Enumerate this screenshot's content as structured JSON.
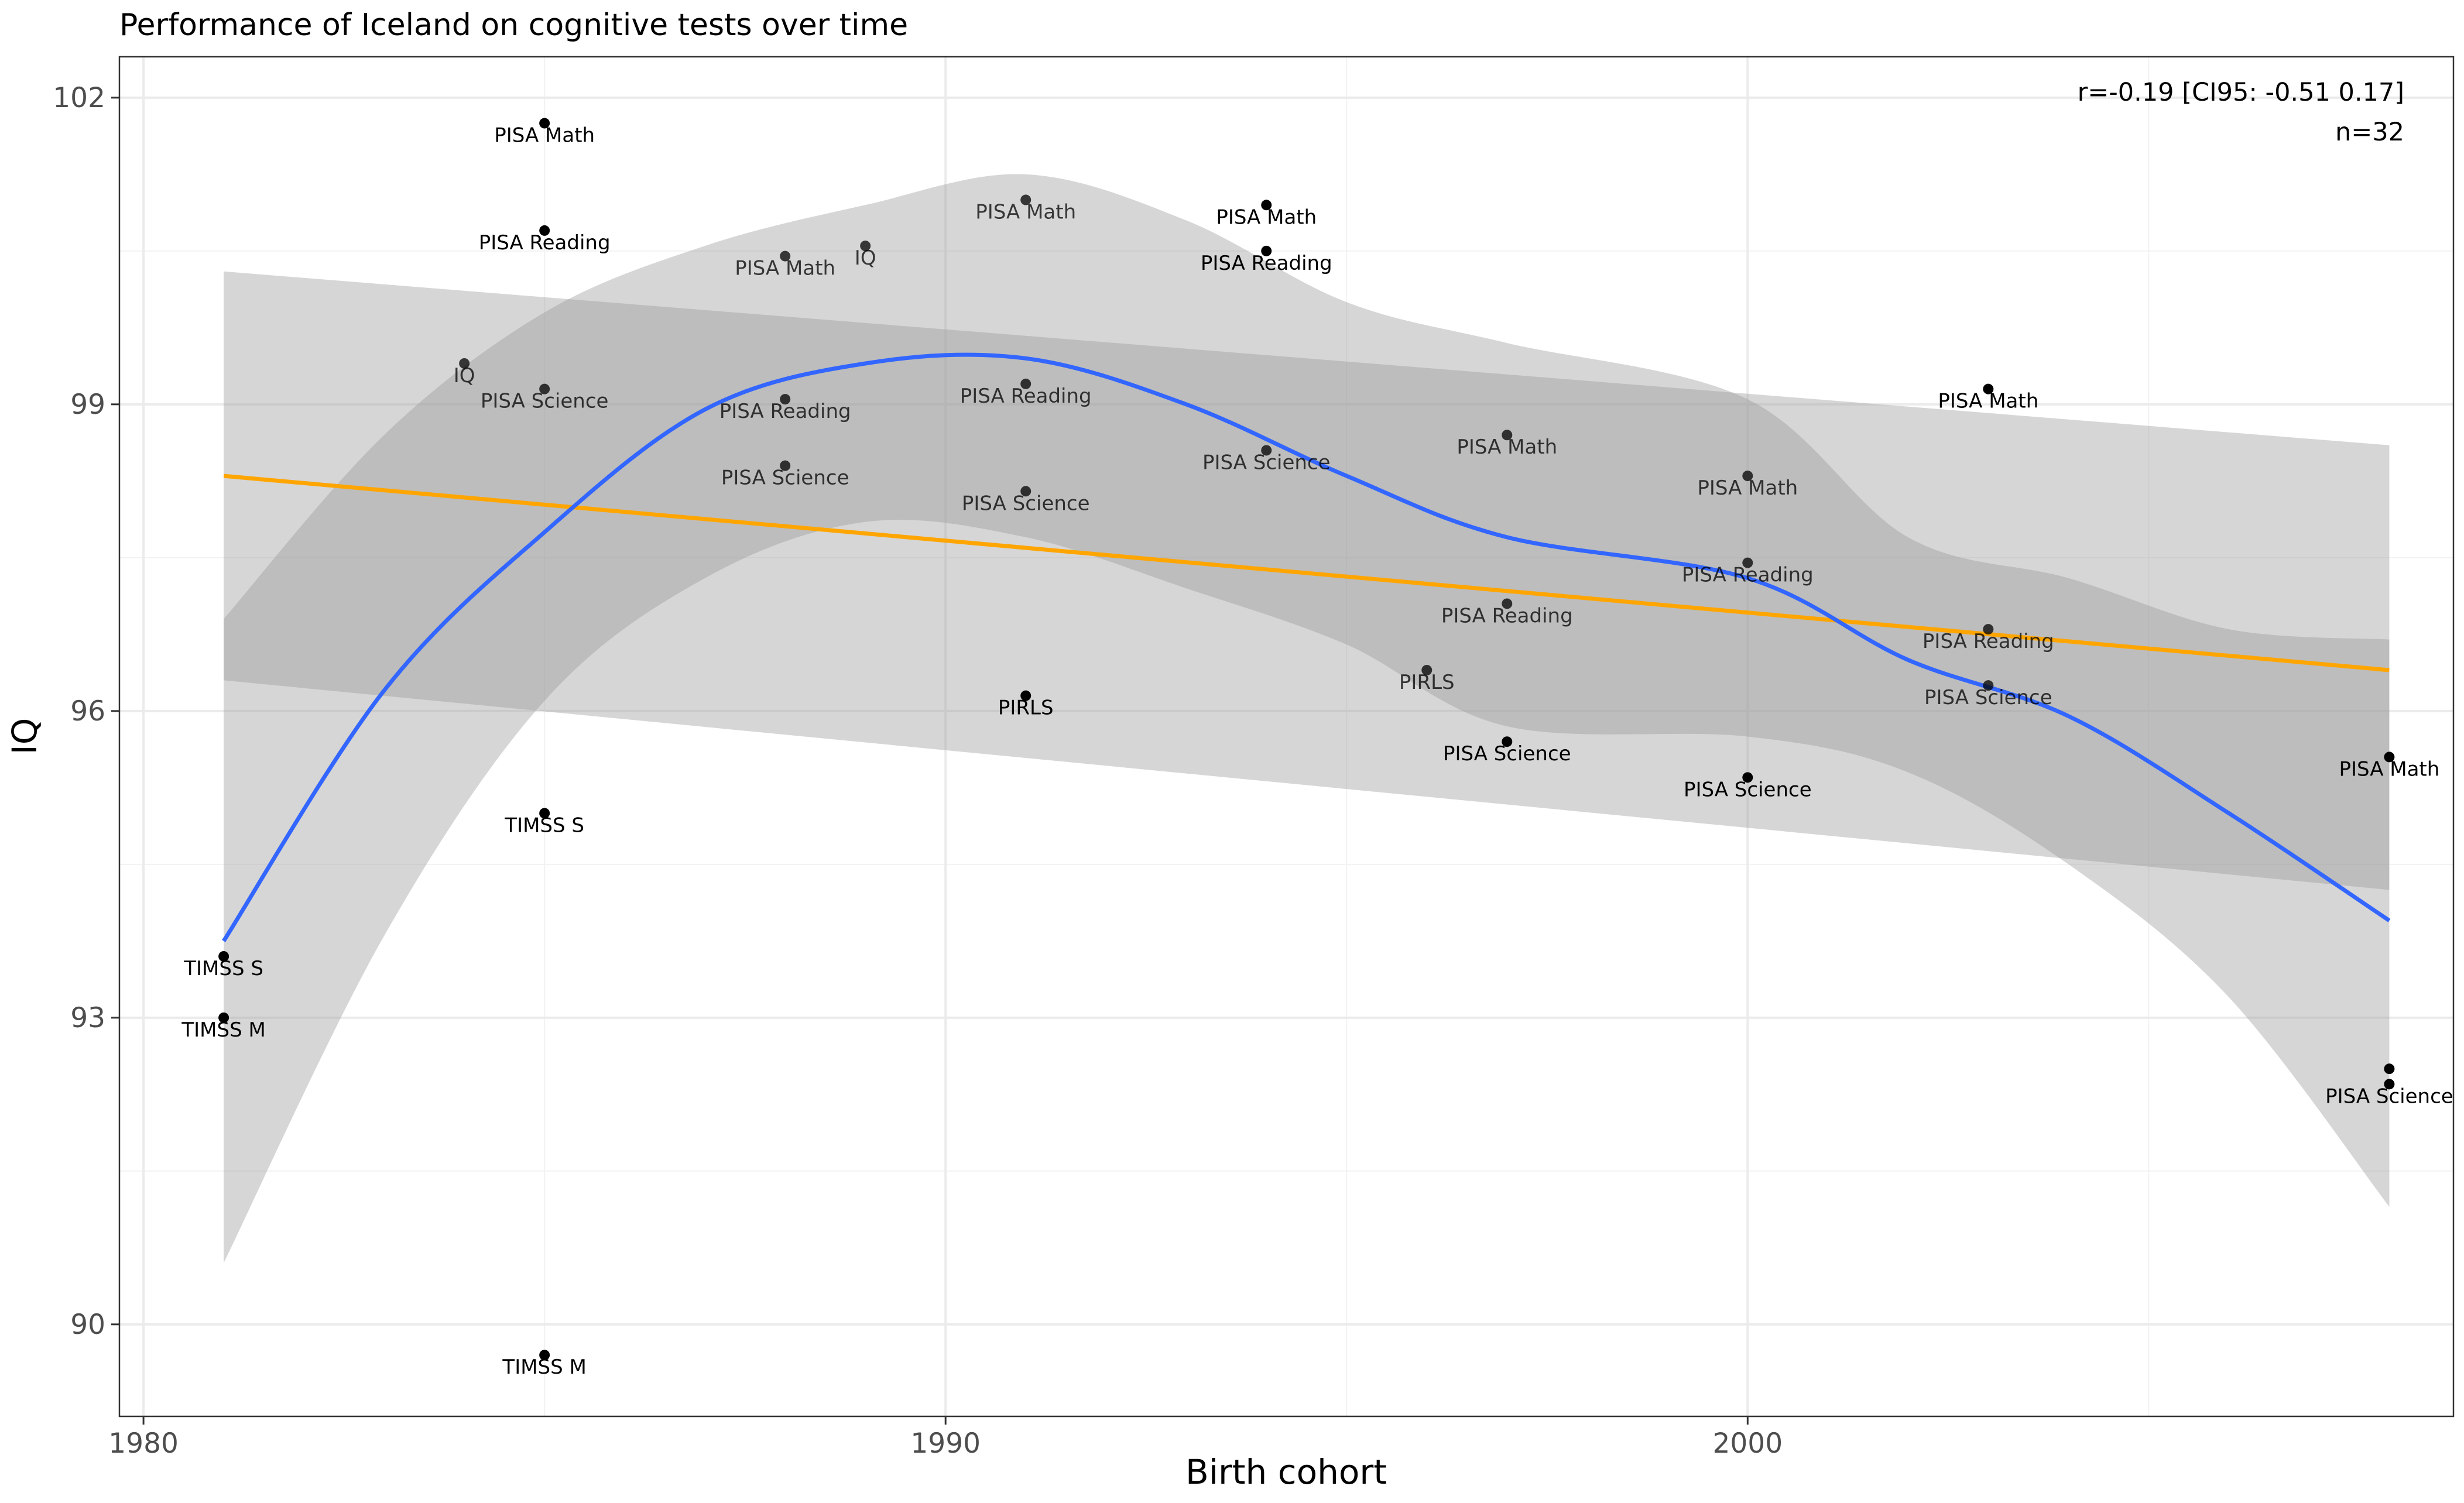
{
  "chart_data": {
    "type": "scatter",
    "title": "Performance of Iceland on cognitive tests over time",
    "xlabel": "Birth cohort",
    "ylabel": "IQ",
    "xlim": [
      1979.7,
      2008.8
    ],
    "ylim": [
      89.1,
      102.4
    ],
    "x_ticks": [
      1980,
      1990,
      2000
    ],
    "x_minor_ticks": [
      1985,
      1995,
      2005
    ],
    "y_ticks": [
      90,
      93,
      96,
      99,
      102
    ],
    "y_minor_ticks": [
      91.5,
      94.5,
      97.5,
      100.5
    ],
    "grid": true,
    "annotation": [
      "r=-0.19 [CI95: -0.51 0.17]",
      "n=32"
    ],
    "points": [
      {
        "x": 1981,
        "y": 93.6,
        "label": "TIMSS S",
        "alpha": 1
      },
      {
        "x": 1981,
        "y": 93.0,
        "label": "TIMSS M",
        "alpha": 1
      },
      {
        "x": 1984,
        "y": 99.4,
        "label": "IQ",
        "alpha": 0.75
      },
      {
        "x": 1985,
        "y": 101.75,
        "label": "PISA Math",
        "alpha": 1
      },
      {
        "x": 1985,
        "y": 100.7,
        "label": "PISA Reading",
        "alpha": 1
      },
      {
        "x": 1985,
        "y": 99.15,
        "label": "PISA Science",
        "alpha": 0.75
      },
      {
        "x": 1985,
        "y": 95.0,
        "label": "TIMSS S",
        "alpha": 1
      },
      {
        "x": 1985,
        "y": 89.7,
        "label": "TIMSS M",
        "alpha": 1
      },
      {
        "x": 1988,
        "y": 100.45,
        "label": "PISA Math",
        "alpha": 0.75
      },
      {
        "x": 1988,
        "y": 99.05,
        "label": "PISA Reading",
        "alpha": 0.75
      },
      {
        "x": 1988,
        "y": 98.4,
        "label": "PISA Science",
        "alpha": 0.75
      },
      {
        "x": 1989,
        "y": 100.55,
        "label": "IQ",
        "alpha": 0.75
      },
      {
        "x": 1991,
        "y": 101.0,
        "label": "PISA Math",
        "alpha": 0.75
      },
      {
        "x": 1991,
        "y": 99.2,
        "label": "PISA Reading",
        "alpha": 0.75
      },
      {
        "x": 1991,
        "y": 98.15,
        "label": "PISA Science",
        "alpha": 0.75
      },
      {
        "x": 1991,
        "y": 96.15,
        "label": "PIRLS",
        "alpha": 1
      },
      {
        "x": 1994,
        "y": 100.95,
        "label": "PISA Math",
        "alpha": 1
      },
      {
        "x": 1994,
        "y": 100.5,
        "label": "PISA Reading",
        "alpha": 1
      },
      {
        "x": 1994,
        "y": 98.55,
        "label": "PISA Science",
        "alpha": 0.75
      },
      {
        "x": 1996,
        "y": 96.4,
        "label": "PIRLS",
        "alpha": 0.75
      },
      {
        "x": 1997,
        "y": 98.7,
        "label": "PISA Math",
        "alpha": 0.75
      },
      {
        "x": 1997,
        "y": 97.05,
        "label": "PISA Reading",
        "alpha": 0.75
      },
      {
        "x": 1997,
        "y": 95.7,
        "label": "PISA Science",
        "alpha": 1
      },
      {
        "x": 2000,
        "y": 98.3,
        "label": "PISA Math",
        "alpha": 0.75
      },
      {
        "x": 2000,
        "y": 97.45,
        "label": "PISA Reading",
        "alpha": 0.75
      },
      {
        "x": 2000,
        "y": 95.35,
        "label": "PISA Science",
        "alpha": 1
      },
      {
        "x": 2003,
        "y": 99.15,
        "label": "PISA Math",
        "alpha": 1
      },
      {
        "x": 2003,
        "y": 96.8,
        "label": "PISA Reading",
        "alpha": 0.75
      },
      {
        "x": 2003,
        "y": 96.25,
        "label": "PISA Science",
        "alpha": 0.75
      },
      {
        "x": 2008,
        "y": 95.55,
        "label": "PISA Math",
        "alpha": 1
      },
      {
        "x": 2008,
        "y": 92.5,
        "label": "",
        "alpha": 1
      },
      {
        "x": 2008,
        "y": 92.35,
        "label": "PISA Science",
        "alpha": 1
      }
    ],
    "series": [
      {
        "type": "linear",
        "color": "#FFA500",
        "x": [
          1981,
          2008
        ],
        "y": [
          98.3,
          96.4
        ],
        "ci_lower": [
          96.3,
          94.25
        ],
        "ci_upper": [
          100.3,
          98.6
        ]
      },
      {
        "type": "loess",
        "color": "#3366FF",
        "x": [
          1981,
          1983,
          1985,
          1987,
          1989,
          1991,
          1993,
          1995,
          1997,
          2000,
          2002,
          2004,
          2006,
          2008
        ],
        "y": [
          93.75,
          96.2,
          97.75,
          98.95,
          99.4,
          99.45,
          99.0,
          98.3,
          97.7,
          97.3,
          96.5,
          95.95,
          95.0,
          93.95
        ],
        "ci_lower": [
          90.6,
          93.8,
          96.1,
          97.3,
          97.85,
          97.7,
          97.2,
          96.65,
          95.85,
          95.75,
          95.4,
          94.5,
          93.2,
          91.15
        ],
        "ci_upper": [
          96.9,
          98.7,
          99.9,
          100.55,
          100.95,
          101.25,
          100.8,
          100.0,
          99.6,
          99.05,
          97.7,
          97.3,
          96.8,
          96.7
        ]
      }
    ]
  }
}
